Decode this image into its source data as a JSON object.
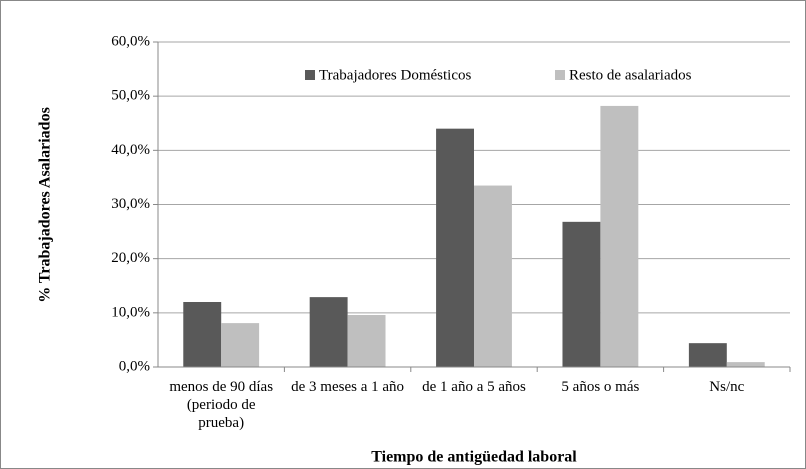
{
  "chart_data": {
    "type": "bar",
    "y_label": "% Trabajadores Asalariados",
    "x_label": "Tiempo de antigüedad laboral",
    "categories": [
      "menos de 90 días (periodo de prueba)",
      "de 3 meses a 1 año",
      "de 1 año a 5 años",
      "5 años o más",
      "Ns/nc"
    ],
    "series": [
      {
        "name": "Trabajadores Domésticos",
        "color": "#595959",
        "values": [
          12.0,
          12.9,
          44.0,
          26.8,
          4.4
        ]
      },
      {
        "name": "Resto de asalariados",
        "color": "#bfbfbf",
        "values": [
          8.1,
          9.6,
          33.5,
          48.2,
          0.9
        ]
      }
    ],
    "ylim": [
      0,
      60
    ],
    "yticks": [
      {
        "value": 0,
        "label": "0,0%"
      },
      {
        "value": 10,
        "label": "10,0%"
      },
      {
        "value": 20,
        "label": "20,0%"
      },
      {
        "value": 30,
        "label": "30,0%"
      },
      {
        "value": 40,
        "label": "40,0%"
      },
      {
        "value": 50,
        "label": "50,0%"
      },
      {
        "value": 60,
        "label": "60,0%"
      }
    ],
    "grid": true,
    "legend": "top"
  }
}
